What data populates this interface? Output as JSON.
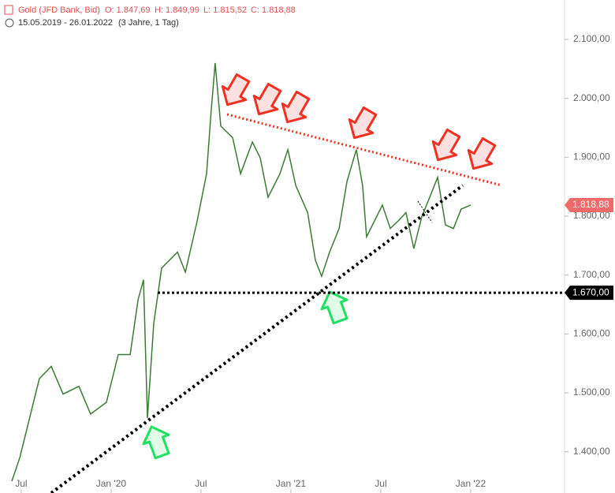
{
  "chart_data": {
    "type": "line",
    "title": "Gold (JFD Bank, Bid)",
    "ohlc": [
      "O: 1.847,69",
      "H: 1.849,99",
      "L: 1.815,52",
      "C: 1.818,88"
    ],
    "subtitle": "15.05.2019 - 26.01.2022",
    "period": "(3 Jahre, 1 Tag)",
    "xlim": [
      2019.382,
      2022.522
    ],
    "xticks": [
      {
        "value": 2019.5,
        "label": "Jul"
      },
      {
        "value": 2020.0,
        "label": "Jan '20"
      },
      {
        "value": 2020.5,
        "label": "Jul"
      },
      {
        "value": 2021.0,
        "label": "Jan '21"
      },
      {
        "value": 2021.5,
        "label": "Jul"
      },
      {
        "value": 2022.0,
        "label": "Jan '22"
      }
    ],
    "ylim": [
      1330,
      2167
    ],
    "yticks": [
      {
        "value": 1400,
        "label": "1.400,00"
      },
      {
        "value": 1500,
        "label": "1.500,00"
      },
      {
        "value": 1600,
        "label": "1.600,00"
      },
      {
        "value": 1700,
        "label": "1.700,00"
      },
      {
        "value": 1800,
        "label": "1.800,00"
      },
      {
        "value": 1900,
        "label": "1.900,00"
      },
      {
        "value": 2000,
        "label": "2.000,00"
      },
      {
        "value": 2100,
        "label": "2.100,00"
      }
    ],
    "series": [
      {
        "name": "Gold",
        "color": "#3d7a35",
        "x": [
          2019.448,
          2019.492,
          2019.601,
          2019.667,
          2019.733,
          2019.821,
          2019.886,
          2019.974,
          2020.04,
          2020.106,
          2020.15,
          2020.18,
          2020.202,
          2020.237,
          2020.281,
          2020.369,
          2020.413,
          2020.479,
          2020.531,
          2020.557,
          2020.579,
          2020.61,
          2020.676,
          2020.72,
          2020.786,
          2020.829,
          2020.873,
          2020.939,
          2020.983,
          2021.027,
          2021.093,
          2021.136,
          2021.171,
          2021.215,
          2021.268,
          2021.312,
          2021.364,
          2021.399,
          2021.421,
          2021.465,
          2021.509,
          2021.553,
          2021.597,
          2021.64,
          2021.684,
          2021.728,
          2021.772,
          2021.816,
          2021.86,
          2021.904,
          2021.947,
          2022.0
        ],
        "values": [
          1350,
          1390,
          1524,
          1545,
          1498,
          1511,
          1464,
          1484,
          1565,
          1565,
          1658,
          1692,
          1457,
          1618,
          1712,
          1739,
          1705,
          1792,
          1872,
          1980,
          2060,
          1953,
          1933,
          1872,
          1926,
          1899,
          1832,
          1872,
          1913,
          1852,
          1806,
          1725,
          1698,
          1739,
          1779,
          1859,
          1913,
          1852,
          1765,
          1792,
          1819,
          1779,
          1792,
          1806,
          1745,
          1799,
          1832,
          1866,
          1785,
          1779,
          1812,
          1819
        ]
      }
    ],
    "price_markers": [
      {
        "value": 1818.88,
        "label": "1.818,88",
        "color": "#f06a6a"
      },
      {
        "value": 1670,
        "label": "1.670,00",
        "color": "#000000"
      }
    ]
  }
}
